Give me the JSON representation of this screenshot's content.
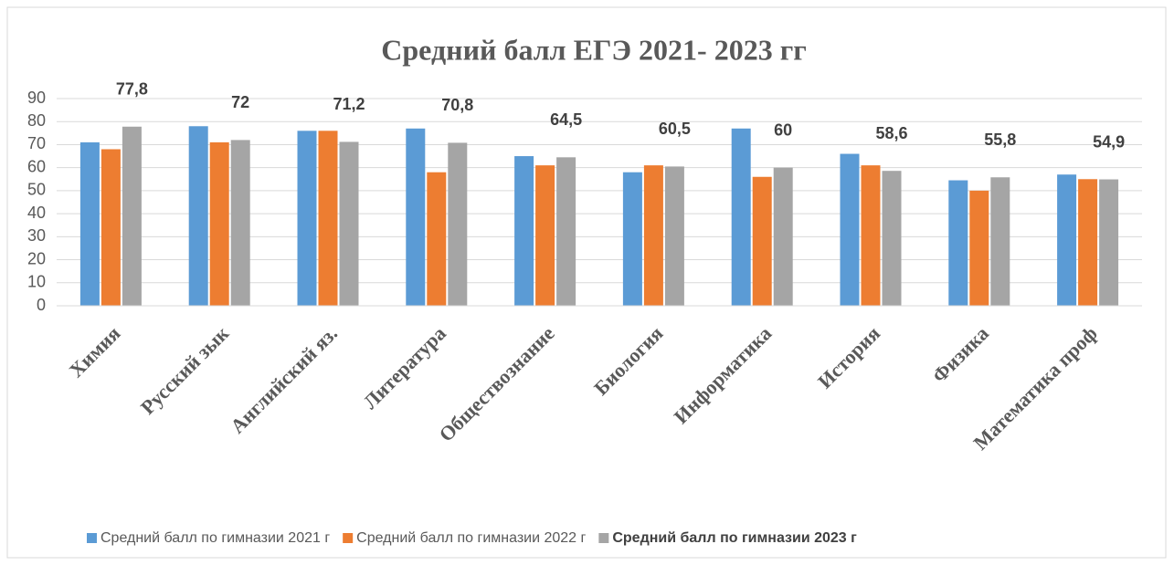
{
  "chart_data": {
    "type": "bar",
    "title": "Средний балл  ЕГЭ 2021- 2023 гг",
    "categories": [
      "Химия",
      "Русский зык",
      "Английский яз.",
      "Литература",
      "Обществознание",
      "Биология",
      "Информатика",
      "История",
      "Физика",
      "Математика проф"
    ],
    "series": [
      {
        "name": "Средний балл по гимназии 2021 г",
        "color": "#5b9bd5",
        "values": [
          71,
          78,
          76,
          77,
          65,
          58,
          77,
          66,
          54.5,
          57
        ]
      },
      {
        "name": "Средний балл по гимназии 2022 г",
        "color": "#ed7d31",
        "values": [
          68,
          71,
          76,
          58,
          61,
          61,
          56,
          61,
          50,
          55
        ]
      },
      {
        "name": "Средний балл по гимназии 2023 г",
        "color": "#a5a5a5",
        "values": [
          77.8,
          72,
          71.2,
          70.8,
          64.5,
          60.5,
          60,
          58.6,
          55.8,
          54.9
        ],
        "value_labels": [
          "77,8",
          "72",
          "71,2",
          "70,8",
          "64,5",
          "60,5",
          "60",
          "58,6",
          "55,8",
          "54,9"
        ]
      }
    ],
    "ylim": [
      0,
      90
    ],
    "yticks": [
      0,
      10,
      20,
      30,
      40,
      50,
      60,
      70,
      80,
      90
    ],
    "grid": true
  }
}
